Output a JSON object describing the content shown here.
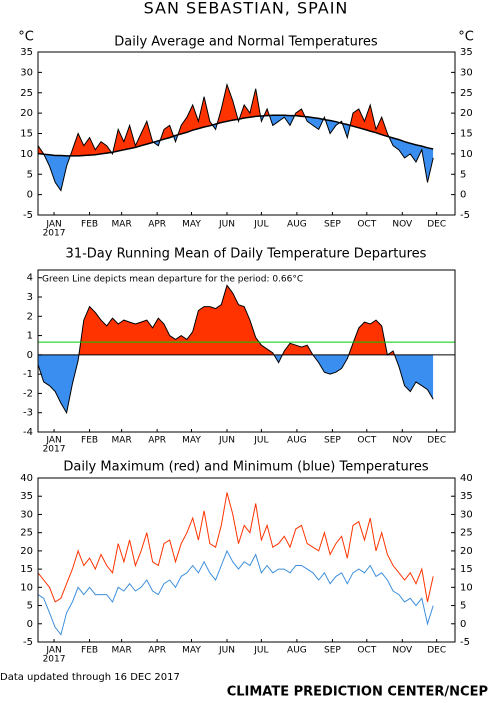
{
  "header": {
    "title": "SAN SEBASTIAN, SPAIN"
  },
  "footer": {
    "updated": "Data updated through 16 DEC 2017",
    "credit": "CLIMATE PREDICTION CENTER/NCEP"
  },
  "chart_data": [
    {
      "type": "line",
      "title": "Daily Average and Normal Temperatures",
      "y_unit_label": "°C",
      "y2_unit_label": "°C",
      "year_label": "2017",
      "x": [
        1,
        6,
        11,
        16,
        21,
        26,
        31,
        36,
        41,
        46,
        51,
        56,
        61,
        66,
        71,
        76,
        81,
        86,
        91,
        96,
        101,
        106,
        111,
        116,
        121,
        126,
        131,
        136,
        141,
        146,
        151,
        156,
        161,
        166,
        171,
        176,
        181,
        186,
        191,
        196,
        201,
        206,
        211,
        216,
        221,
        226,
        231,
        236,
        241,
        246,
        251,
        256,
        261,
        266,
        271,
        276,
        281,
        286,
        291,
        296,
        301,
        306,
        311,
        316,
        321,
        326,
        331,
        336,
        341,
        346
      ],
      "series": [
        {
          "color": "#000000",
          "values": [
            12,
            10,
            7,
            3,
            1,
            7,
            11,
            15,
            12,
            14,
            11,
            13,
            12,
            10,
            16,
            13,
            17,
            12,
            15,
            18,
            13,
            12,
            16,
            17,
            13,
            17,
            19,
            22,
            18,
            24,
            18,
            16,
            21,
            27,
            23,
            18,
            22,
            20,
            26,
            18,
            21,
            17,
            18,
            19,
            17,
            20,
            21,
            18,
            17,
            16,
            19,
            15,
            17,
            18,
            14,
            20,
            21,
            18,
            22,
            16,
            19,
            15,
            12,
            11,
            9,
            10,
            8,
            11,
            3,
            9
          ]
        },
        {
          "color": "#000000",
          "values": [
            10.1,
            9.9,
            9.8,
            9.6,
            9.6,
            9.5,
            9.5,
            9.5,
            9.6,
            9.7,
            9.8,
            10.0,
            10.2,
            10.4,
            10.7,
            11.0,
            11.3,
            11.6,
            12.0,
            12.4,
            12.8,
            13.2,
            13.6,
            14.0,
            14.5,
            14.9,
            15.3,
            15.8,
            16.2,
            16.6,
            16.9,
            17.3,
            17.7,
            18.0,
            18.3,
            18.5,
            18.8,
            19.0,
            19.2,
            19.3,
            19.4,
            19.5,
            19.5,
            19.5,
            19.4,
            19.4,
            19.2,
            19.1,
            18.9,
            18.7,
            18.4,
            18.2,
            17.9,
            17.5,
            17.2,
            16.8,
            16.4,
            16.0,
            15.6,
            15.2,
            14.7,
            14.3,
            13.9,
            13.5,
            13.0,
            12.6,
            12.2,
            11.9,
            11.5,
            11.2
          ]
        }
      ],
      "fill_colors": [
        "#ff3300",
        "#3a8ef0"
      ],
      "xlim": [
        1,
        365
      ],
      "xticks": [
        {
          "value": 15,
          "label": "JAN"
        },
        {
          "value": 46,
          "label": "FEB"
        },
        {
          "value": 74,
          "label": "MAR"
        },
        {
          "value": 105,
          "label": "APR"
        },
        {
          "value": 135,
          "label": "MAY"
        },
        {
          "value": 166,
          "label": "JUN"
        },
        {
          "value": 196,
          "label": "JUL"
        },
        {
          "value": 227,
          "label": "AUG"
        },
        {
          "value": 258,
          "label": "SEP"
        },
        {
          "value": 288,
          "label": "OCT"
        },
        {
          "value": 319,
          "label": "NOV"
        },
        {
          "value": 349,
          "label": "DEC"
        }
      ],
      "ylim": [
        -5,
        35
      ],
      "yticks": [
        -5,
        0,
        5,
        10,
        15,
        20,
        25,
        30,
        35
      ],
      "y2lim": [
        -5,
        35
      ],
      "y2ticks": [
        -5,
        0,
        5,
        10,
        15,
        20,
        25,
        30,
        35
      ]
    },
    {
      "type": "area",
      "title": "31-Day Running Mean of Daily Temperature Departures",
      "annotation": "Green Line depicts mean departure for the period: 0.66°C",
      "year_label": "2017",
      "x": [
        1,
        6,
        11,
        16,
        21,
        26,
        31,
        36,
        41,
        46,
        51,
        56,
        61,
        66,
        71,
        76,
        81,
        86,
        91,
        96,
        101,
        106,
        111,
        116,
        121,
        126,
        131,
        136,
        141,
        146,
        151,
        156,
        161,
        166,
        171,
        176,
        181,
        186,
        191,
        196,
        201,
        206,
        211,
        216,
        221,
        226,
        231,
        236,
        241,
        246,
        251,
        256,
        261,
        266,
        271,
        276,
        281,
        286,
        291,
        296,
        301,
        306,
        311,
        316,
        321,
        326,
        331,
        336,
        341,
        346
      ],
      "series": [
        {
          "color": "#000000",
          "values": [
            -0.5,
            -1.4,
            -1.6,
            -1.9,
            -2.5,
            -3.0,
            -1.5,
            -0.3,
            1.8,
            2.5,
            2.2,
            1.8,
            1.5,
            1.9,
            1.6,
            1.8,
            1.7,
            1.6,
            1.7,
            1.8,
            1.4,
            1.9,
            1.6,
            1.0,
            0.8,
            1.0,
            0.8,
            1.2,
            2.3,
            2.5,
            2.5,
            2.4,
            2.6,
            3.6,
            3.2,
            2.6,
            2.5,
            1.8,
            0.9,
            0.5,
            0.3,
            0.1,
            -0.4,
            0.2,
            0.6,
            0.5,
            0.4,
            0.5,
            0.0,
            -0.4,
            -0.9,
            -1.0,
            -0.9,
            -0.7,
            -0.2,
            0.6,
            1.4,
            1.7,
            1.6,
            1.8,
            1.5,
            0.0,
            0.2,
            -0.6,
            -1.6,
            -1.9,
            -1.4,
            -1.6,
            -1.8,
            -2.3
          ]
        }
      ],
      "fill_colors": [
        "#ff3300",
        "#3a8ef0"
      ],
      "reference_line": {
        "value": 0.66,
        "color": "#00cc00"
      },
      "xlim": [
        1,
        365
      ],
      "xticks": [
        {
          "value": 15,
          "label": "JAN"
        },
        {
          "value": 46,
          "label": "FEB"
        },
        {
          "value": 74,
          "label": "MAR"
        },
        {
          "value": 105,
          "label": "APR"
        },
        {
          "value": 135,
          "label": "MAY"
        },
        {
          "value": 166,
          "label": "JUN"
        },
        {
          "value": 196,
          "label": "JUL"
        },
        {
          "value": 227,
          "label": "AUG"
        },
        {
          "value": 258,
          "label": "SEP"
        },
        {
          "value": 288,
          "label": "OCT"
        },
        {
          "value": 319,
          "label": "NOV"
        },
        {
          "value": 349,
          "label": "DEC"
        }
      ],
      "ylim": [
        -4,
        4.4
      ],
      "yticks": [
        -4,
        -3,
        -2,
        -1,
        0,
        1,
        2,
        3,
        4
      ]
    },
    {
      "type": "line",
      "title": "Daily Maximum (red) and Minimum (blue) Temperatures",
      "year_label": "2017",
      "x": [
        1,
        6,
        11,
        16,
        21,
        26,
        31,
        36,
        41,
        46,
        51,
        56,
        61,
        66,
        71,
        76,
        81,
        86,
        91,
        96,
        101,
        106,
        111,
        116,
        121,
        126,
        131,
        136,
        141,
        146,
        151,
        156,
        161,
        166,
        171,
        176,
        181,
        186,
        191,
        196,
        201,
        206,
        211,
        216,
        221,
        226,
        231,
        236,
        241,
        246,
        251,
        256,
        261,
        266,
        271,
        276,
        281,
        286,
        291,
        296,
        301,
        306,
        311,
        316,
        321,
        326,
        331,
        336,
        341,
        346
      ],
      "series": [
        {
          "color": "#ff3300",
          "values": [
            14,
            12,
            10,
            6,
            7,
            11,
            15,
            20,
            16,
            18,
            15,
            19,
            16,
            14,
            22,
            17,
            23,
            16,
            20,
            25,
            17,
            16,
            22,
            23,
            17,
            22,
            25,
            29,
            23,
            31,
            22,
            21,
            27,
            36,
            30,
            22,
            27,
            25,
            33,
            23,
            27,
            21,
            22,
            24,
            21,
            26,
            27,
            22,
            21,
            20,
            25,
            19,
            22,
            24,
            18,
            27,
            28,
            23,
            29,
            20,
            25,
            19,
            16,
            14,
            12,
            14,
            11,
            15,
            6,
            13
          ]
        },
        {
          "color": "#3d8fdc",
          "values": [
            8,
            7,
            3,
            -1,
            -3,
            3,
            6,
            10,
            8,
            10,
            8,
            8,
            8,
            6,
            10,
            9,
            11,
            9,
            10,
            12,
            9,
            8,
            11,
            12,
            10,
            13,
            14,
            16,
            14,
            17,
            14,
            12,
            16,
            20,
            17,
            15,
            17,
            16,
            19,
            14,
            16,
            14,
            15,
            15,
            14,
            16,
            16,
            15,
            14,
            12,
            14,
            11,
            13,
            14,
            11,
            14,
            15,
            14,
            16,
            13,
            14,
            12,
            9,
            8,
            6,
            7,
            5,
            7,
            0,
            5
          ]
        }
      ],
      "xlim": [
        1,
        365
      ],
      "xticks": [
        {
          "value": 15,
          "label": "JAN"
        },
        {
          "value": 46,
          "label": "FEB"
        },
        {
          "value": 74,
          "label": "MAR"
        },
        {
          "value": 105,
          "label": "APR"
        },
        {
          "value": 135,
          "label": "MAY"
        },
        {
          "value": 166,
          "label": "JUN"
        },
        {
          "value": 196,
          "label": "JUL"
        },
        {
          "value": 227,
          "label": "AUG"
        },
        {
          "value": 258,
          "label": "SEP"
        },
        {
          "value": 288,
          "label": "OCT"
        },
        {
          "value": 319,
          "label": "NOV"
        },
        {
          "value": 349,
          "label": "DEC"
        }
      ],
      "ylim": [
        -5,
        40
      ],
      "yticks": [
        -5,
        0,
        5,
        10,
        15,
        20,
        25,
        30,
        35,
        40
      ],
      "y2lim": [
        -5,
        40
      ],
      "y2ticks": [
        -5,
        0,
        5,
        10,
        15,
        20,
        25,
        30,
        35,
        40
      ]
    }
  ]
}
